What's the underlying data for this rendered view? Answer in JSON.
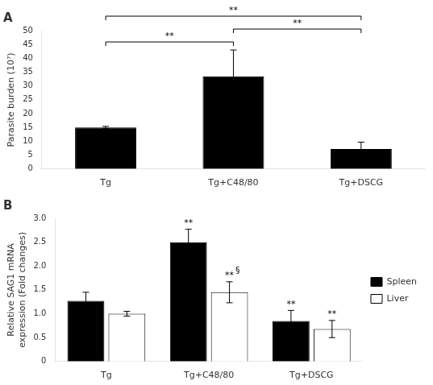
{
  "chart_data": [
    {
      "type": "bar",
      "title": "A",
      "categories": [
        "Tg",
        "Tg+C48/80",
        "Tg+DSCG"
      ],
      "values": [
        15.0,
        33.5,
        7.2
      ],
      "errors": [
        0.4,
        9.5,
        2.5
      ],
      "color": "#000000",
      "ylabel": "Parasite burden (10⁷)",
      "ylim": [
        0,
        50
      ],
      "yticks": [
        0,
        5,
        10,
        15,
        20,
        25,
        30,
        35,
        40,
        45,
        50
      ],
      "grid": false,
      "annotations": [
        {
          "text": "**",
          "from": "Tg",
          "to": "Tg+C48/80"
        },
        {
          "text": "**",
          "from": "Tg+C48/80",
          "to": "Tg+DSCG"
        },
        {
          "text": "**",
          "from": "Tg",
          "to": "Tg+DSCG"
        }
      ]
    },
    {
      "type": "bar",
      "title": "B",
      "categories": [
        "Tg",
        "Tg+C48/80",
        "Tg+DSCG"
      ],
      "series": [
        {
          "name": "Spleen",
          "color": "#000000",
          "values": [
            1.27,
            2.5,
            0.85
          ],
          "errors": [
            0.18,
            0.27,
            0.22
          ]
        },
        {
          "name": "Liver",
          "color": "#ffffff",
          "values": [
            1.0,
            1.45,
            0.68
          ],
          "errors": [
            0.05,
            0.22,
            0.18
          ]
        }
      ],
      "ylabel": "Relative SAG1 mRNA\nexpression (Fold changes)",
      "ylim": [
        0,
        3.0
      ],
      "yticks": [
        0,
        0.5,
        {
          "value": 1.0,
          "label": "1.0"
        },
        1.5,
        {
          "value": 2.0,
          "label": "2.0"
        },
        2.5,
        {
          "value": 3.0,
          "label": "3.0"
        }
      ],
      "grid": false,
      "legend": "right",
      "annotations": [
        {
          "text": "**",
          "category": "Tg+C48/80",
          "series": "Spleen"
        },
        {
          "text": "**",
          "category": "Tg+C48/80",
          "series": "Liver"
        },
        {
          "text": "§",
          "category": "Tg+C48/80",
          "series": "Liver"
        },
        {
          "text": "**",
          "category": "Tg+DSCG",
          "series": "Spleen"
        },
        {
          "text": "**",
          "category": "Tg+DSCG",
          "series": "Liver"
        }
      ]
    }
  ]
}
